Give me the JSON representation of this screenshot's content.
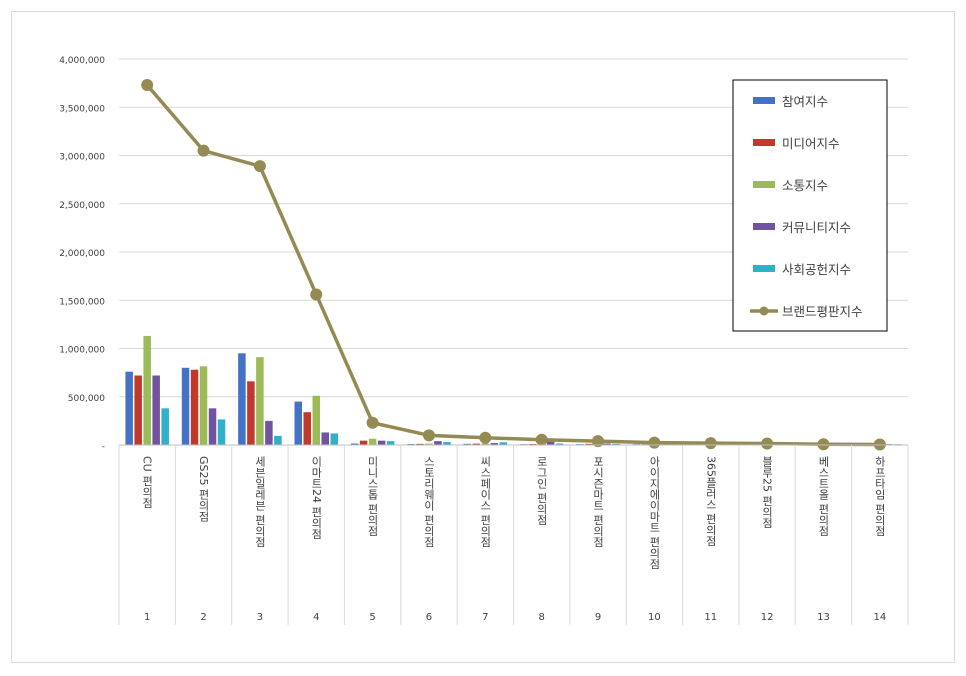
{
  "chart_data": {
    "type": "bar",
    "title": "",
    "xlabel": "",
    "ylabel": "",
    "ylim": [
      0,
      4000000
    ],
    "yticks": [
      0,
      500000,
      1000000,
      1500000,
      2000000,
      2500000,
      3000000,
      3500000,
      4000000
    ],
    "ytick_labels": [
      "-",
      "500,000",
      "1,000,000",
      "1,500,000",
      "2,000,000",
      "2,500,000",
      "3,000,000",
      "3,500,000",
      "4,000,000"
    ],
    "grid": true,
    "legend_position": "top-right",
    "categories": [
      "CU 편의점",
      "GS25 편의점",
      "세븐일레븐 편의점",
      "이마트24 편의점",
      "미니스톱 편의점",
      "스토리웨이 편의점",
      "씨스페이스 편의점",
      "로그인 편의점",
      "포시즌마트 편의점",
      "아이지에이마트 편의점",
      "365플러스 편의점",
      "블루25 편의점",
      "베스트올 편의점",
      "하프타임 편의점"
    ],
    "ranks": [
      "1",
      "2",
      "3",
      "4",
      "5",
      "6",
      "7",
      "8",
      "9",
      "10",
      "11",
      "12",
      "13",
      "14"
    ],
    "series": [
      {
        "name": "참여지수",
        "kind": "bar",
        "color": "#4472c4",
        "values": [
          760000,
          800000,
          950000,
          450000,
          15000,
          10000,
          12000,
          8000,
          9000,
          7000,
          6000,
          5000,
          4000,
          3000
        ]
      },
      {
        "name": "미디어지수",
        "kind": "bar",
        "color": "#c0392b",
        "values": [
          720000,
          780000,
          660000,
          340000,
          45000,
          12000,
          14000,
          10000,
          12000,
          8000,
          7000,
          6000,
          5000,
          3000
        ]
      },
      {
        "name": "소통지수",
        "kind": "bar",
        "color": "#9bbb59",
        "values": [
          1130000,
          815000,
          910000,
          510000,
          65000,
          15000,
          16000,
          12000,
          14000,
          9000,
          8000,
          7000,
          6000,
          4000
        ]
      },
      {
        "name": "커뮤니티지수",
        "kind": "bar",
        "color": "#7153a0",
        "values": [
          720000,
          380000,
          250000,
          130000,
          45000,
          40000,
          20000,
          35000,
          15000,
          10000,
          8000,
          6000,
          5000,
          4000
        ]
      },
      {
        "name": "사회공헌지수",
        "kind": "bar",
        "color": "#31b1c8",
        "values": [
          380000,
          265000,
          95000,
          120000,
          40000,
          30000,
          28000,
          15000,
          12000,
          10000,
          9000,
          8000,
          6000,
          5000
        ]
      },
      {
        "name": "브랜드평판지수",
        "kind": "line",
        "color": "#948a54",
        "values": [
          3730000,
          3050000,
          2890000,
          1560000,
          230000,
          100000,
          75000,
          55000,
          40000,
          25000,
          20000,
          15000,
          8000,
          5000
        ]
      }
    ]
  }
}
